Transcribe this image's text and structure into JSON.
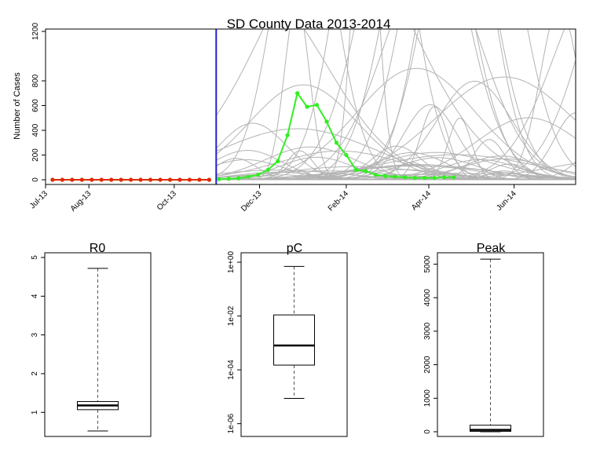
{
  "chart_data": [
    {
      "type": "line",
      "title": "SD County Data 2013-2014",
      "xlabel": "",
      "ylabel": "Number of Cases",
      "x_ticks": [
        "Jul-13",
        "Aug-13",
        "Oct-13",
        "Dec-13",
        "Feb-14",
        "Apr-14",
        "Jun-14"
      ],
      "x_tick_dates": [
        "2013-07-01",
        "2013-08-01",
        "2013-10-01",
        "2013-12-01",
        "2014-02-01",
        "2014-04-01",
        "2014-06-01"
      ],
      "y_ticks": [
        0,
        200,
        400,
        600,
        800,
        1200
      ],
      "ylim": [
        0,
        1200
      ],
      "xlim": [
        "2013-07-01",
        "2014-07-15"
      ],
      "vertical_line": {
        "date": "2013-10-31",
        "color": "#2222cc"
      },
      "series": [
        {
          "color": "#dd2a00",
          "x": [
            "2013-07-06",
            "2013-07-13",
            "2013-07-20",
            "2013-07-27",
            "2013-08-03",
            "2013-08-10",
            "2013-08-17",
            "2013-08-24",
            "2013-08-31",
            "2013-09-07",
            "2013-09-14",
            "2013-09-21",
            "2013-09-28",
            "2013-10-05",
            "2013-10-12",
            "2013-10-19",
            "2013-10-26"
          ],
          "y": [
            0,
            0,
            0,
            0,
            0,
            0,
            0,
            0,
            0,
            0,
            0,
            0,
            0,
            0,
            0,
            0,
            0
          ]
        },
        {
          "color": "#33ee22",
          "x": [
            "2013-11-02",
            "2013-11-09",
            "2013-11-16",
            "2013-11-23",
            "2013-11-30",
            "2013-12-07",
            "2013-12-14",
            "2013-12-21",
            "2013-12-28",
            "2014-01-04",
            "2014-01-11",
            "2014-01-18",
            "2014-01-25",
            "2014-02-01",
            "2014-02-08",
            "2014-02-15",
            "2014-02-22",
            "2014-03-01",
            "2014-03-08",
            "2014-03-15",
            "2014-03-22",
            "2014-03-29",
            "2014-04-05",
            "2014-04-12",
            "2014-04-19"
          ],
          "y": [
            5,
            8,
            12,
            25,
            40,
            80,
            150,
            360,
            700,
            590,
            605,
            470,
            300,
            200,
            80,
            70,
            40,
            30,
            25,
            20,
            15,
            15,
            15,
            20,
            20
          ]
        }
      ],
      "simulations_color": "#b3b3b3"
    },
    {
      "type": "box",
      "title": "R0",
      "y_ticks": [
        1,
        2,
        3,
        4,
        5
      ],
      "ylim": [
        0.5,
        5.0
      ],
      "whisker_low": 0.52,
      "q1": 1.07,
      "median": 1.18,
      "q3": 1.28,
      "whisker_high": 4.72
    },
    {
      "type": "box",
      "title": "pC",
      "log_scale": true,
      "y_ticks": [
        "1e-06",
        "1e-04",
        "1e-02",
        "1e+00"
      ],
      "ylim": [
        5e-07,
        1.5
      ],
      "whisker_low": 8.7e-06,
      "q1": 0.00015,
      "median": 0.0008,
      "q3": 0.011,
      "whisker_high": 0.7
    },
    {
      "type": "box",
      "title": "Peak",
      "y_ticks": [
        0,
        1000,
        2000,
        3000,
        4000,
        5000
      ],
      "ylim": [
        0,
        5200
      ],
      "whisker_low": 0,
      "q1": 10,
      "median": 55,
      "q3": 195,
      "whisker_high": 5150
    }
  ]
}
